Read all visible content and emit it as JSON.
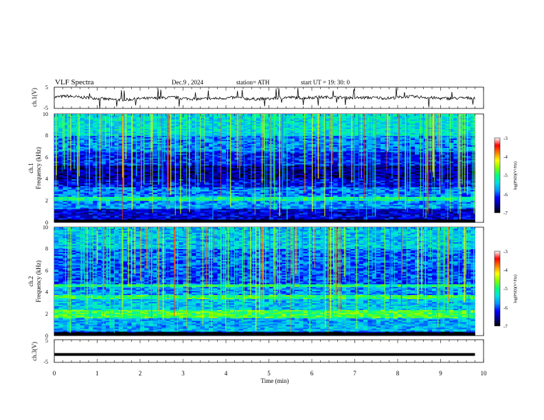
{
  "header": {
    "title": "VLF  Spectra",
    "date": "Dec.9  , 2024",
    "station": "station= ATH",
    "start": "start  UT  =   19: 30: 0"
  },
  "colors": {
    "colormap": [
      "#000000",
      "#00008b",
      "#0000ff",
      "#0096ff",
      "#00e0e0",
      "#00ff80",
      "#80ff00",
      "#ffff00",
      "#ff8000",
      "#ff0000",
      "#ffffff"
    ],
    "waveform": "#000000"
  },
  "chart_data": [
    {
      "type": "line",
      "name": "ch1-waveform",
      "ylabel": "ch.1(V)",
      "ylim": [
        -5,
        5
      ],
      "yticks": [
        "5",
        "-5"
      ],
      "xlim": [
        0,
        10
      ],
      "data_extent_min": 9.8,
      "description_level": "noisy waveform around -0.5 V with spikes",
      "series_points": [
        [
          0.0,
          0.3
        ],
        [
          0.3,
          0.8
        ],
        [
          0.6,
          0.2
        ],
        [
          1.0,
          -0.2
        ],
        [
          1.3,
          -0.8
        ],
        [
          1.7,
          -0.9
        ],
        [
          2.0,
          -0.4
        ],
        [
          2.4,
          -0.2
        ],
        [
          2.8,
          0.2
        ],
        [
          3.0,
          -0.3
        ],
        [
          3.4,
          -0.6
        ],
        [
          3.8,
          -0.3
        ],
        [
          4.2,
          0.1
        ],
        [
          4.6,
          -0.6
        ],
        [
          5.0,
          -0.5
        ],
        [
          5.4,
          0.2
        ],
        [
          5.8,
          0.0
        ],
        [
          6.2,
          0.3
        ],
        [
          6.6,
          0.2
        ],
        [
          7.0,
          0.0
        ],
        [
          7.4,
          0.1
        ],
        [
          7.8,
          -0.2
        ],
        [
          8.2,
          0.6
        ],
        [
          8.6,
          0.3
        ],
        [
          9.0,
          -0.3
        ],
        [
          9.4,
          -0.2
        ],
        [
          9.8,
          0.0
        ]
      ]
    },
    {
      "type": "heatmap",
      "name": "ch1-spectrogram",
      "ylabel_line1": "ch.1",
      "ylabel_line2": "Frequency  (kHz)",
      "ylim": [
        0,
        10
      ],
      "yticks": [
        "0",
        "2",
        "4",
        "6",
        "8",
        "10"
      ],
      "xlim": [
        0,
        10
      ],
      "colorbar": {
        "label": "log(PSD)(V²/Hz)",
        "range": [
          -7,
          -3
        ],
        "ticks": [
          "-3",
          "-4",
          "-5",
          "-6",
          "-7"
        ]
      },
      "bands_khz": [
        {
          "from": 0.0,
          "to": 0.3,
          "level": -7.0
        },
        {
          "from": 0.3,
          "to": 1.2,
          "level": -6.3
        },
        {
          "from": 1.2,
          "to": 2.0,
          "level": -5.6
        },
        {
          "from": 2.0,
          "to": 2.4,
          "level": -4.9
        },
        {
          "from": 2.4,
          "to": 3.3,
          "level": -5.7
        },
        {
          "from": 3.3,
          "to": 4.0,
          "level": -6.2
        },
        {
          "from": 4.0,
          "to": 5.2,
          "level": -6.5
        },
        {
          "from": 5.2,
          "to": 6.5,
          "level": -6.1
        },
        {
          "from": 6.5,
          "to": 8.0,
          "level": -5.7
        },
        {
          "from": 8.0,
          "to": 10.0,
          "level": -5.2
        }
      ]
    },
    {
      "type": "heatmap",
      "name": "ch2-spectrogram",
      "ylabel_line1": "ch.2",
      "ylabel_line2": "Frequency  (kHz)",
      "ylim": [
        0,
        10
      ],
      "yticks": [
        "0",
        "2",
        "4",
        "6",
        "8",
        "10"
      ],
      "xlim": [
        0,
        10
      ],
      "colorbar": {
        "label": "log(PSD)(V²/Hz)",
        "range": [
          -7,
          -3
        ],
        "ticks": [
          "-3",
          "-4",
          "-5",
          "-6",
          "-7"
        ]
      },
      "bands_khz": [
        {
          "from": 0.0,
          "to": 0.4,
          "level": -6.8
        },
        {
          "from": 0.4,
          "to": 1.6,
          "level": -5.5
        },
        {
          "from": 1.6,
          "to": 2.4,
          "level": -4.6
        },
        {
          "from": 2.4,
          "to": 3.4,
          "level": -5.4
        },
        {
          "from": 3.4,
          "to": 3.7,
          "level": -4.7
        },
        {
          "from": 3.7,
          "to": 4.5,
          "level": -5.6
        },
        {
          "from": 4.5,
          "to": 4.8,
          "level": -4.8
        },
        {
          "from": 4.8,
          "to": 6.5,
          "level": -5.9
        },
        {
          "from": 6.5,
          "to": 8.0,
          "level": -5.8
        },
        {
          "from": 8.0,
          "to": 10.0,
          "level": -5.4
        }
      ]
    },
    {
      "type": "line",
      "name": "ch3-waveform",
      "ylabel": "ch.3(V)",
      "ylim": [
        -5,
        5
      ],
      "yticks": [
        "5",
        "-5"
      ],
      "xlim": [
        0,
        10
      ],
      "xlabel": "Time  (min)",
      "xticks": [
        "0",
        "1",
        "2",
        "3",
        "4",
        "5",
        "6",
        "7",
        "8",
        "9",
        "10"
      ],
      "series_points": [
        [
          0.0,
          -1.5
        ],
        [
          9.8,
          -1.5
        ]
      ]
    }
  ]
}
